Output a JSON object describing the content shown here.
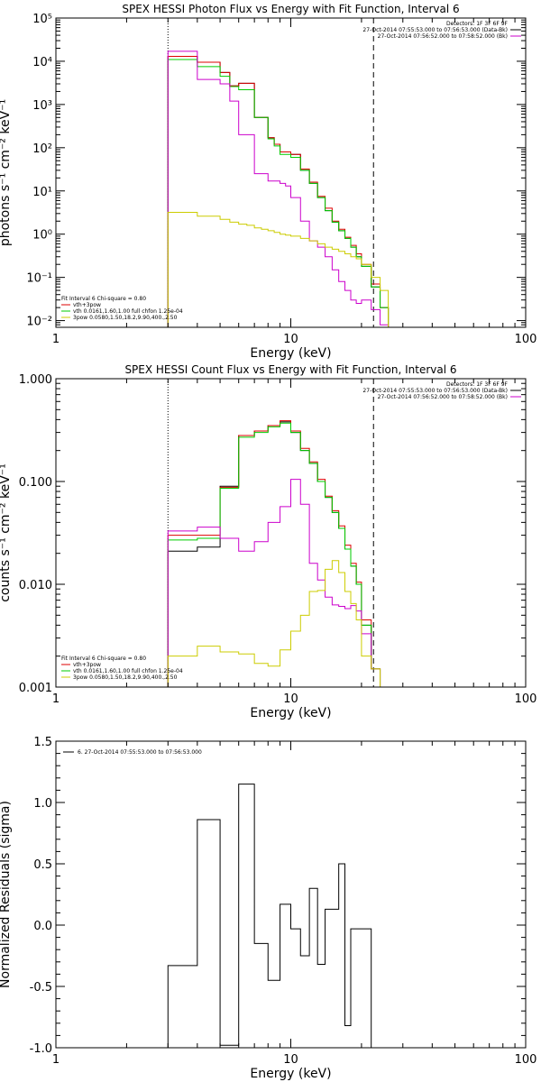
{
  "chart_data": [
    {
      "type": "step-line",
      "title": "SPEX HESSI Photon Flux vs Energy with Fit Function, Interval 6",
      "xlabel": "Energy (keV)",
      "ylabel": "photons s⁻¹ cm⁻² keV⁻¹",
      "xscale": "log",
      "yscale": "log",
      "xlim": [
        1,
        100
      ],
      "ylim": [
        0.007,
        100000
      ],
      "x_ticks": [
        1,
        10,
        100
      ],
      "x_tick_labels": [
        "1",
        "10",
        "100"
      ],
      "y_ticks": [
        0.01,
        0.1,
        1,
        10,
        100,
        1000,
        10000,
        100000
      ],
      "y_tick_labels": [
        "10⁻²",
        "10⁻¹",
        "10⁰",
        "10¹",
        "10²",
        "10³",
        "10⁴",
        "10⁵"
      ],
      "grid": false,
      "vertical_markers": [
        {
          "x": 3.0,
          "style": "dotted",
          "color": "#000000"
        },
        {
          "x": 22.5,
          "style": "dashed",
          "color": "#000000"
        }
      ],
      "legend_topright": [
        {
          "text": "Detectors: 1F 3F 6F 9F",
          "color": null
        },
        {
          "text": "27-Oct-2014 07:55:53.000 to 07:56:53.000 (Data-Bk)",
          "color": "#000000"
        },
        {
          "text": "27-Oct-2014 07:56:52.000 to 07:58:52.000 (Bk)",
          "color": "#cc00cc"
        }
      ],
      "legend_bottomleft": [
        {
          "text": "Fit Interval 6   Chi-square = 0.80",
          "color": null
        },
        {
          "text": "vth+3pow",
          "color": "#dd0000"
        },
        {
          "text": "vth 0.0161,1.60,1.00  full chfon 1.25e-04",
          "color": "#00cc00"
        },
        {
          "text": "3pow 0.0580,1.50,18.2,9.90,400.,2.50",
          "color": "#cccc00"
        }
      ],
      "bin_edges": [
        3.0,
        3.5,
        4.0,
        4.5,
        5.0,
        5.5,
        6.0,
        6.5,
        7.0,
        7.5,
        8.0,
        8.5,
        9.0,
        9.5,
        10.0,
        11.0,
        12.0,
        13.0,
        14.0,
        15.0,
        16.0,
        17.0,
        18.0,
        19.0,
        20.0,
        22.0,
        24.0,
        26.0
      ],
      "series": [
        {
          "color": "#000000",
          "values": [
            13000,
            13000,
            9500,
            9500,
            5500,
            2700,
            3100,
            3100,
            500,
            500,
            170,
            120,
            80,
            80,
            70,
            30,
            15,
            7,
            3.5,
            1.9,
            1.2,
            0.8,
            0.5,
            0.3,
            0.18,
            0.06,
            0.02
          ]
        },
        {
          "color": "#dd0000",
          "values": [
            13000,
            13000,
            9500,
            9500,
            5500,
            2700,
            3100,
            3100,
            500,
            500,
            170,
            120,
            80,
            80,
            70,
            32,
            16,
            7.5,
            4.0,
            2.0,
            1.3,
            0.85,
            0.55,
            0.35,
            0.2,
            0.07,
            0.02
          ]
        },
        {
          "color": "#00cc00",
          "values": [
            11000,
            11000,
            7500,
            7500,
            4500,
            2600,
            2200,
            2200,
            500,
            500,
            160,
            110,
            70,
            70,
            60,
            30,
            15,
            7,
            3.5,
            1.9,
            1.2,
            0.8,
            0.5,
            0.3,
            0.18,
            0.06,
            0.02
          ]
        },
        {
          "color": "#cc00cc",
          "values": [
            17000,
            17000,
            3800,
            3800,
            3000,
            1200,
            200,
            200,
            25,
            25,
            17,
            17,
            15,
            13,
            7,
            2.0,
            0.7,
            0.5,
            0.3,
            0.15,
            0.08,
            0.05,
            0.03,
            0.025,
            0.03,
            0.018,
            0.008
          ]
        },
        {
          "color": "#cccc00",
          "values": [
            3.2,
            3.2,
            2.6,
            2.6,
            2.2,
            1.9,
            1.7,
            1.6,
            1.4,
            1.3,
            1.2,
            1.1,
            1.0,
            0.95,
            0.9,
            0.8,
            0.7,
            0.6,
            0.5,
            0.45,
            0.4,
            0.35,
            0.3,
            0.27,
            0.2,
            0.1,
            0.05
          ]
        }
      ]
    },
    {
      "type": "step-line",
      "title": "SPEX HESSI Count Flux vs Energy with Fit Function, Interval 6",
      "xlabel": "Energy (keV)",
      "ylabel": "counts s⁻¹ cm⁻² keV⁻¹",
      "xscale": "log",
      "yscale": "log",
      "xlim": [
        1,
        100
      ],
      "ylim": [
        0.001,
        1.0
      ],
      "x_ticks": [
        1,
        10,
        100
      ],
      "x_tick_labels": [
        "1",
        "10",
        "100"
      ],
      "y_ticks": [
        0.001,
        0.01,
        0.1,
        1.0
      ],
      "y_tick_labels": [
        "0.001",
        "0.010",
        "0.100",
        "1.000"
      ],
      "grid": false,
      "vertical_markers": [
        {
          "x": 3.0,
          "style": "dotted",
          "color": "#000000"
        },
        {
          "x": 22.5,
          "style": "dashed",
          "color": "#000000"
        }
      ],
      "legend_topright": [
        {
          "text": "Detectors: 1F 3F 6F 9F",
          "color": null
        },
        {
          "text": "27-Oct-2014 07:55:53.000 to 07:56:53.000 (Data-Bk)",
          "color": "#000000"
        },
        {
          "text": "27-Oct-2014 07:56:52.000 to 07:58:52.000 (Bk)",
          "color": "#cc00cc"
        }
      ],
      "legend_bottomleft": [
        {
          "text": "Fit Interval 6   Chi-square = 0.80",
          "color": null
        },
        {
          "text": "vth+3pow",
          "color": "#dd0000"
        },
        {
          "text": "vth 0.0161,1.60,1.00  full chfon 1.25e-04",
          "color": "#00cc00"
        },
        {
          "text": "3pow 0.0580,1.50,18.2,9.90,400.,2.50",
          "color": "#cccc00"
        }
      ],
      "bin_edges": [
        3.0,
        4.0,
        5.0,
        6.0,
        7.0,
        8.0,
        9.0,
        10.0,
        11.0,
        12.0,
        13.0,
        14.0,
        15.0,
        16.0,
        17.0,
        18.0,
        19.0,
        20.0,
        22.0,
        24.0
      ],
      "series": [
        {
          "color": "#000000",
          "values": [
            0.021,
            0.023,
            0.09,
            0.28,
            0.31,
            0.35,
            0.38,
            0.3,
            0.2,
            0.15,
            0.1,
            0.07,
            0.05,
            0.035,
            0.022,
            0.015,
            0.01,
            0.004,
            0.0015
          ]
        },
        {
          "color": "#dd0000",
          "values": [
            0.03,
            0.03,
            0.088,
            0.28,
            0.31,
            0.35,
            0.39,
            0.31,
            0.21,
            0.155,
            0.105,
            0.072,
            0.052,
            0.037,
            0.024,
            0.016,
            0.0105,
            0.0045,
            0.0015
          ]
        },
        {
          "color": "#00cc00",
          "values": [
            0.027,
            0.028,
            0.086,
            0.27,
            0.3,
            0.34,
            0.37,
            0.3,
            0.2,
            0.15,
            0.1,
            0.07,
            0.05,
            0.035,
            0.022,
            0.015,
            0.01,
            0.004,
            0.0015
          ]
        },
        {
          "color": "#cc00cc",
          "values": [
            0.033,
            0.036,
            0.028,
            0.021,
            0.026,
            0.04,
            0.057,
            0.105,
            0.06,
            0.016,
            0.011,
            0.0075,
            0.0063,
            0.0061,
            0.0058,
            0.0062,
            0.0055,
            0.0033,
            0.0015
          ]
        },
        {
          "color": "#cccc00",
          "values": [
            0.002,
            0.0025,
            0.0022,
            0.0021,
            0.0017,
            0.0016,
            0.0023,
            0.0035,
            0.005,
            0.0085,
            0.0087,
            0.014,
            0.017,
            0.013,
            0.0085,
            0.0065,
            0.0045,
            0.002,
            0.0015
          ]
        }
      ]
    },
    {
      "type": "step-line",
      "title": "",
      "xlabel": "Energy (keV)",
      "ylabel": "Normalized Residuals (sigma)",
      "xscale": "log",
      "yscale": "linear",
      "xlim": [
        1,
        100
      ],
      "ylim": [
        -1.0,
        1.5
      ],
      "x_ticks": [
        1,
        10,
        100
      ],
      "x_tick_labels": [
        "1",
        "10",
        "100"
      ],
      "y_ticks": [
        -1.0,
        -0.5,
        0.0,
        0.5,
        1.0,
        1.5
      ],
      "y_tick_labels": [
        "-1.0",
        "-0.5",
        "0.0",
        "0.5",
        "1.0",
        "1.5"
      ],
      "grid": false,
      "vertical_markers": [],
      "legend_topleft": [
        {
          "text": "6. 27-Oct-2014 07:55:53.000 to 07:56:53.000",
          "color": "#000000"
        }
      ],
      "bin_edges": [
        3.0,
        4.0,
        5.0,
        6.0,
        7.0,
        8.0,
        9.0,
        10.0,
        11.0,
        12.0,
        13.0,
        14.0,
        15.0,
        16.0,
        17.0,
        18.0,
        20.0,
        22.0
      ],
      "series": [
        {
          "color": "#000000",
          "values": [
            -0.33,
            0.86,
            -0.98,
            1.15,
            -0.15,
            -0.45,
            0.17,
            -0.03,
            -0.25,
            0.3,
            -0.32,
            0.13,
            0.13,
            0.5,
            -0.82,
            -0.03,
            -0.03
          ]
        }
      ]
    }
  ]
}
